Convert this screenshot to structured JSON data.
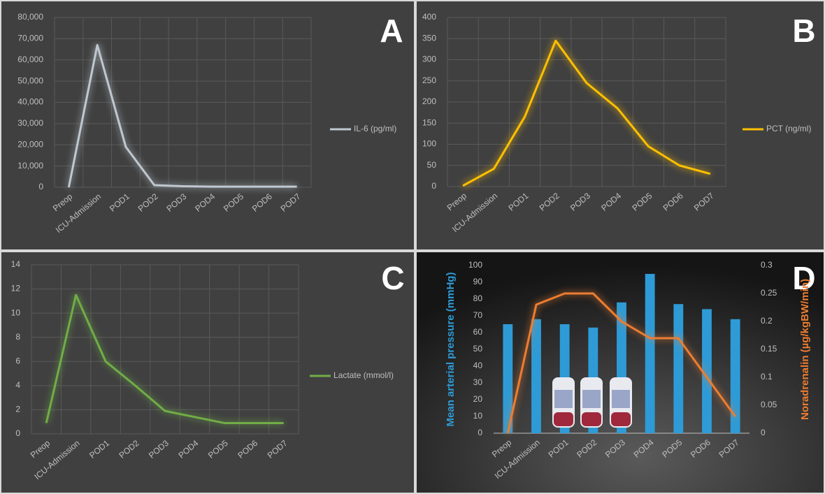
{
  "chart_data": [
    {
      "type": "line",
      "annotation": "A",
      "categories": [
        "Preop",
        "ICU-Admission",
        "POD1",
        "POD2",
        "POD3",
        "POD4",
        "POD5",
        "POD6",
        "POD7"
      ],
      "series": [
        {
          "name": "IL-6 (pg/ml)",
          "color": "#bfc8d0",
          "values": [
            0,
            67000,
            19000,
            1000,
            500,
            300,
            300,
            300,
            300
          ]
        }
      ],
      "ylim": [
        0,
        80000
      ],
      "yticks": [
        0,
        {
          "value": 10000,
          "label": "10,000"
        },
        {
          "value": 20000,
          "label": "20,000"
        },
        {
          "value": 30000,
          "label": "30,000"
        },
        {
          "value": 40000,
          "label": "40,000"
        },
        {
          "value": 50000,
          "label": "50,000"
        },
        {
          "value": 60000,
          "label": "60,000"
        },
        {
          "value": 70000,
          "label": "70,000"
        },
        {
          "value": 80000,
          "label": "80,000"
        }
      ],
      "grid": true,
      "legend": "right"
    },
    {
      "type": "line",
      "annotation": "B",
      "categories": [
        "Preop",
        "ICU-Admission",
        "POD1",
        "POD2",
        "POD3",
        "POD4",
        "POD5",
        "POD6",
        "POD7"
      ],
      "series": [
        {
          "name": "PCT (ng/ml)",
          "color": "#ffc000",
          "values": [
            2,
            42,
            165,
            345,
            245,
            185,
            95,
            50,
            30
          ]
        }
      ],
      "ylim": [
        0,
        400
      ],
      "yticks": [
        0,
        50,
        100,
        150,
        200,
        250,
        300,
        350,
        400
      ],
      "grid": true,
      "legend": "right"
    },
    {
      "type": "line",
      "annotation": "C",
      "categories": [
        "Preop",
        "ICU-Admission",
        "POD1",
        "POD2",
        "POD3",
        "POD4",
        "POD5",
        "POD6",
        "POD7"
      ],
      "series": [
        {
          "name": "Lactate (mmol/l)",
          "color": "#70ad47",
          "values": [
            0.9,
            11.5,
            6,
            4,
            1.9,
            1.4,
            0.9,
            0.9,
            0.9
          ]
        }
      ],
      "ylim": [
        0,
        14
      ],
      "yticks": [
        0,
        2,
        4,
        6,
        8,
        10,
        12,
        14
      ],
      "grid": true,
      "legend": "right"
    },
    {
      "type": "bar",
      "annotation": "D",
      "categories": [
        "Preop",
        "ICU-Admission",
        "POD1",
        "POD2",
        "POD3",
        "POD4",
        "POD5",
        "POD6",
        "POD7"
      ],
      "ylabel": "Mean arterial pressure (mmHg)",
      "y2label": "Noradrenalin (µg/kgBW/min)",
      "series": [
        {
          "type": "bar",
          "color": "#2e9bd6",
          "values": [
            65,
            68,
            65,
            63,
            78,
            95,
            77,
            74,
            68
          ]
        },
        {
          "type": "line",
          "axis": "y2",
          "color": "#ed7d31",
          "values": [
            0,
            0.23,
            0.25,
            0.25,
            0.2,
            0.17,
            0.17,
            0.1,
            0.03
          ]
        }
      ],
      "ylim": [
        0,
        100
      ],
      "yticks": [
        0,
        10,
        20,
        30,
        40,
        50,
        60,
        70,
        80,
        90,
        100
      ],
      "y2lim": [
        0,
        0.3
      ],
      "y2ticks": [
        0,
        0.05,
        0.1,
        0.15,
        0.2,
        0.25,
        0.3
      ],
      "grid": false
    }
  ]
}
